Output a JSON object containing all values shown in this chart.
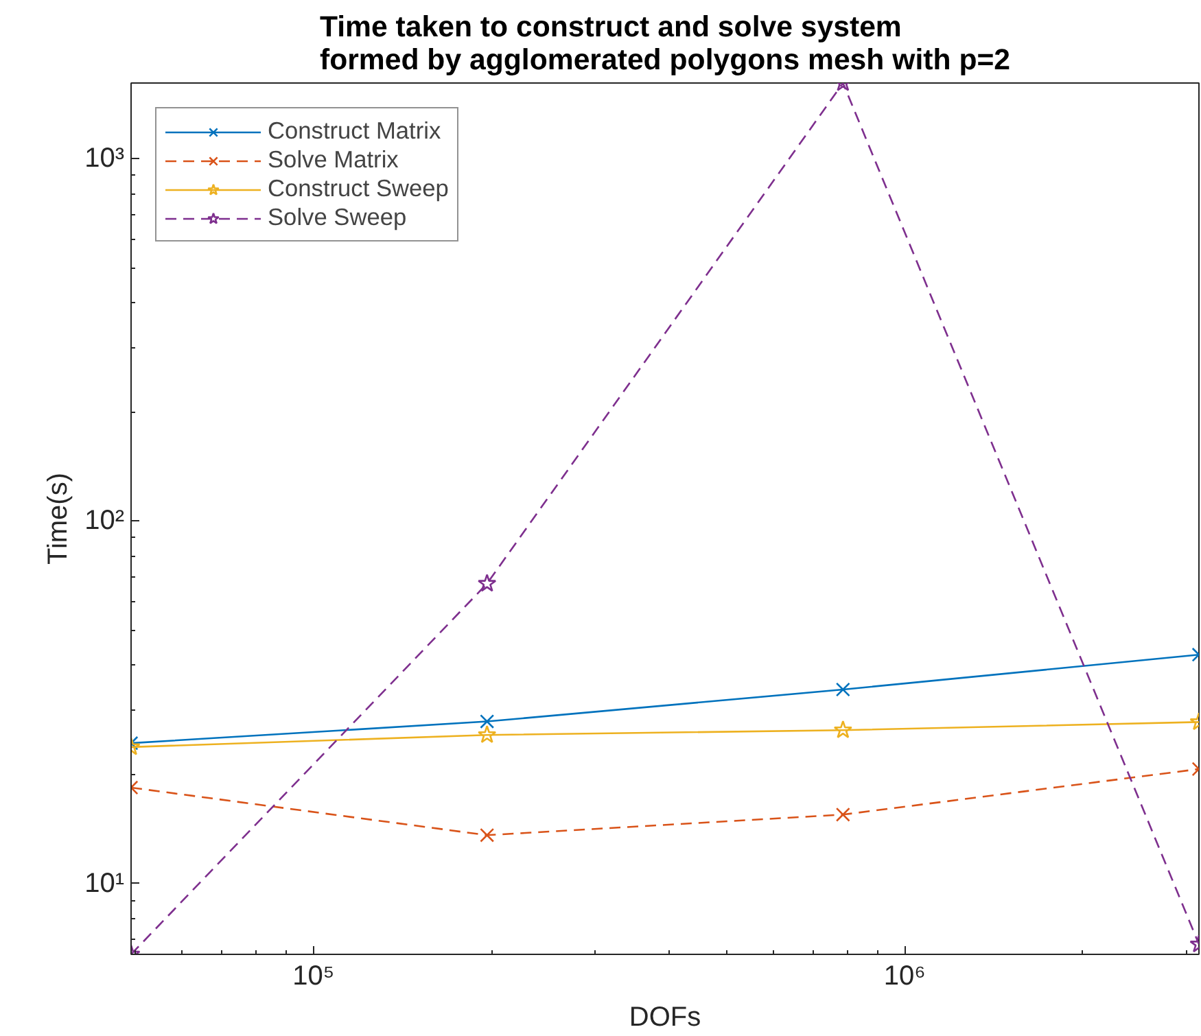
{
  "chart_data": {
    "type": "line",
    "title": "Time taken to construct and solve system\nformed by agglomerated polygons mesh with p=2",
    "xlabel": "DOFs",
    "ylabel": "Time(s)",
    "x": [
      49152,
      196608,
      786432,
      3145728
    ],
    "series": [
      {
        "name": "Construct Matrix",
        "color": "#0072bd",
        "marker": "cross",
        "line_style": "solid",
        "values": [
          24.4,
          28.0,
          34.3,
          42.8
        ]
      },
      {
        "name": "Solve Matrix",
        "color": "#d95319",
        "marker": "cross",
        "line_style": "dashed",
        "values": [
          18.4,
          13.6,
          15.5,
          20.7
        ]
      },
      {
        "name": "Construct Sweep",
        "color": "#edb120",
        "marker": "star",
        "line_style": "solid",
        "values": [
          23.8,
          25.7,
          26.5,
          27.9
        ]
      },
      {
        "name": "Solve Sweep",
        "color": "#7e2f8e",
        "marker": "star",
        "line_style": "dashed",
        "values": [
          6.38,
          67.2,
          1615,
          6.8
        ]
      }
    ],
    "log": "xy",
    "xlim": [
      49152,
      3145728
    ],
    "ylim": [
      6.38,
      1615
    ],
    "xticks": [
      {
        "value": 100000,
        "label": "10⁵"
      },
      {
        "value": 1000000,
        "label": "10⁶"
      }
    ],
    "yticks": [
      {
        "value": 10,
        "label": "10¹"
      },
      {
        "value": 100,
        "label": "10²"
      },
      {
        "value": 1000,
        "label": "10³"
      }
    ],
    "grid": false,
    "legend": "top left"
  }
}
